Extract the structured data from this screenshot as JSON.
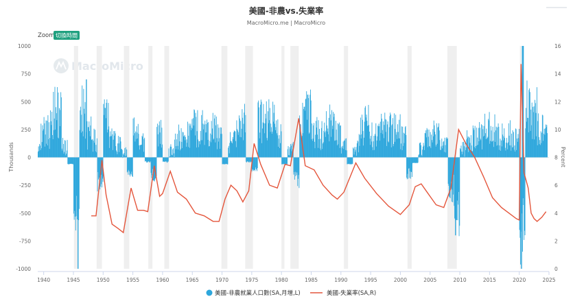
{
  "header": {
    "title": "美國-非農vs.失業率",
    "subtitle": "MacroMicro.me | MacroMicro"
  },
  "controls": {
    "zoom_label": "Zoom",
    "zoom_button": "切換時間"
  },
  "watermark": {
    "text": "MacroMicro"
  },
  "colors": {
    "bars": "#2ea7dc",
    "line": "#e4553b",
    "recession": "#efefef"
  },
  "chart_data": {
    "type": "bar+line",
    "title": "美國-非農vs.失業率",
    "subtitle": "MacroMicro.me | MacroMicro",
    "x": {
      "type": "year",
      "range": [
        1939,
        2025
      ],
      "tick_labels": [
        "1940",
        "1945",
        "1950",
        "1955",
        "1960",
        "1965",
        "1970",
        "1975",
        "1980",
        "1985",
        "1990",
        "1995",
        "2000",
        "2005",
        "2010",
        "2015",
        "2020",
        "2025"
      ]
    },
    "y_left": {
      "label": "Thousands",
      "range": [
        -1000,
        1000
      ],
      "tick_labels": [
        "1000",
        "750",
        "500",
        "250",
        "0",
        "-250",
        "-500",
        "-750",
        "-1000"
      ]
    },
    "y_right": {
      "label": "Percent",
      "range": [
        0,
        16
      ],
      "tick_labels": [
        "16",
        "14",
        "12",
        "10",
        "8",
        "6",
        "4",
        "2",
        "0"
      ]
    },
    "recessions": [
      [
        1945.1,
        1945.8
      ],
      [
        1948.9,
        1949.8
      ],
      [
        1953.5,
        1954.4
      ],
      [
        1957.6,
        1958.3
      ],
      [
        1960.3,
        1961.1
      ],
      [
        1969.9,
        1970.9
      ],
      [
        1973.9,
        1975.2
      ],
      [
        1980.0,
        1980.5
      ],
      [
        1981.5,
        1982.9
      ],
      [
        1990.5,
        1991.2
      ],
      [
        2001.2,
        2001.9
      ],
      [
        2007.9,
        2009.5
      ],
      [
        2020.1,
        2020.4
      ]
    ],
    "series": [
      {
        "name": "美國-非農就業人口數(SA,月增,L)",
        "type": "bar",
        "axis": "left",
        "x": [
          1939,
          1940,
          1941,
          1942,
          1943,
          1944,
          1945,
          1946,
          1947,
          1948,
          1949,
          1950,
          1951,
          1952,
          1953,
          1954,
          1955,
          1956,
          1957,
          1958,
          1959,
          1960,
          1961,
          1962,
          1963,
          1964,
          1965,
          1966,
          1967,
          1968,
          1969,
          1970,
          1971,
          1972,
          1973,
          1974,
          1975,
          1976,
          1977,
          1978,
          1979,
          1980,
          1981,
          1982,
          1983,
          1984,
          1985,
          1986,
          1987,
          1988,
          1989,
          1990,
          1991,
          1992,
          1993,
          1994,
          1995,
          1996,
          1997,
          1998,
          1999,
          2000,
          2001,
          2002,
          2003,
          2004,
          2005,
          2006,
          2007,
          2008,
          2009,
          2010,
          2011,
          2012,
          2013,
          2014,
          2015,
          2016,
          2017,
          2018,
          2019,
          2020,
          2021,
          2022,
          2023,
          2024
        ],
        "values": [
          180,
          230,
          390,
          420,
          100,
          -60,
          -450,
          420,
          220,
          150,
          -220,
          340,
          160,
          120,
          40,
          -140,
          220,
          120,
          -40,
          -160,
          200,
          -40,
          60,
          180,
          160,
          210,
          260,
          270,
          210,
          240,
          220,
          -60,
          130,
          270,
          300,
          -40,
          -100,
          320,
          320,
          330,
          240,
          -60,
          80,
          -200,
          300,
          380,
          230,
          200,
          260,
          290,
          210,
          100,
          -60,
          80,
          240,
          300,
          200,
          240,
          280,
          240,
          250,
          180,
          -150,
          -50,
          80,
          170,
          200,
          180,
          100,
          -280,
          -500,
          80,
          170,
          180,
          200,
          250,
          230,
          190,
          180,
          200,
          170,
          -700,
          520,
          400,
          240,
          180
        ],
        "min": -1000,
        "max": 1000
      },
      {
        "name": "美國-失業率(SA,R)",
        "type": "line",
        "axis": "right",
        "x": [
          1948.0,
          1948.8,
          1949.8,
          1950.5,
          1951.5,
          1952.5,
          1953.4,
          1954.7,
          1955.8,
          1956.8,
          1957.5,
          1958.6,
          1959.5,
          1960.0,
          1961.3,
          1962.5,
          1964.0,
          1965.5,
          1967.0,
          1968.5,
          1969.5,
          1970.5,
          1971.5,
          1972.5,
          1973.5,
          1974.5,
          1975.4,
          1976.5,
          1978.0,
          1979.3,
          1980.6,
          1981.5,
          1982.9,
          1984.0,
          1985.5,
          1987.0,
          1988.5,
          1989.4,
          1990.5,
          1992.5,
          1994.0,
          1996.0,
          1998.0,
          2000.0,
          2001.5,
          2002.5,
          2003.5,
          2004.5,
          2006.0,
          2007.3,
          2008.5,
          2009.8,
          2011.0,
          2012.5,
          2014.0,
          2015.5,
          2017.0,
          2019.5,
          2020.0,
          2020.3,
          2020.8,
          2021.5,
          2022.0,
          2022.5,
          2023.0,
          2023.8,
          2024.5
        ],
        "values": [
          3.8,
          3.8,
          7.8,
          5.3,
          3.2,
          2.9,
          2.6,
          5.8,
          4.2,
          4.2,
          4.1,
          7.4,
          5.2,
          5.4,
          7.0,
          5.5,
          5.0,
          4.0,
          3.8,
          3.4,
          3.4,
          5.0,
          6.0,
          5.6,
          4.8,
          5.6,
          9.0,
          7.5,
          6.0,
          5.8,
          7.5,
          7.4,
          10.8,
          7.4,
          7.1,
          6.0,
          5.3,
          5.0,
          5.5,
          7.6,
          6.5,
          5.4,
          4.5,
          3.9,
          4.6,
          5.9,
          6.1,
          5.5,
          4.6,
          4.4,
          5.8,
          10.0,
          9.0,
          8.0,
          6.6,
          5.1,
          4.4,
          3.6,
          3.5,
          14.7,
          6.9,
          5.8,
          4.0,
          3.6,
          3.4,
          3.7,
          4.1
        ],
        "min": 2.5,
        "max": 14.7
      }
    ],
    "legend": [
      "美國-非農就業人口數(SA,月增,L)",
      "美國-失業率(SA,R)"
    ],
    "legend_position": "bottom-center"
  }
}
